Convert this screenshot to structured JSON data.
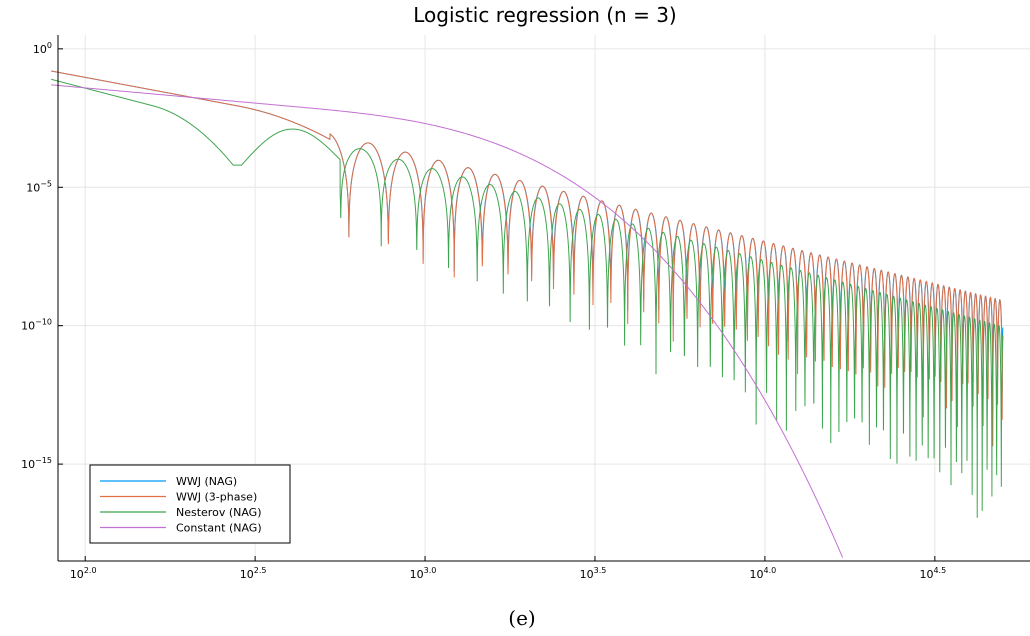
{
  "chart_data": {
    "type": "line",
    "title": "Logistic regression (n = 3)",
    "caption": "(e)",
    "xscale": "log10",
    "yscale": "log10",
    "xlim_log10": [
      1.92,
      4.78
    ],
    "ylim_log10": [
      -18.5,
      0.5
    ],
    "x_ticks": [
      {
        "base": "10",
        "exp": "2.0",
        "log10": 2.0
      },
      {
        "base": "10",
        "exp": "2.5",
        "log10": 2.5
      },
      {
        "base": "10",
        "exp": "3.0",
        "log10": 3.0
      },
      {
        "base": "10",
        "exp": "3.5",
        "log10": 3.5
      },
      {
        "base": "10",
        "exp": "4.0",
        "log10": 4.0
      },
      {
        "base": "10",
        "exp": "4.5",
        "log10": 4.5
      }
    ],
    "y_ticks": [
      {
        "base": "10",
        "exp": "0",
        "log10": 0
      },
      {
        "base": "10",
        "exp": "−5",
        "log10": -5
      },
      {
        "base": "10",
        "exp": "−10",
        "log10": -10
      },
      {
        "base": "10",
        "exp": "−15",
        "log10": -15
      }
    ],
    "grid": true,
    "legend_position": "bottom-left",
    "series": [
      {
        "name": "WWJ (NAG)",
        "color": "#009af9"
      },
      {
        "name": "WWJ (3-phase)",
        "color": "#e26f46"
      },
      {
        "name": "Nesterov (NAG)",
        "color": "#3ea44e"
      },
      {
        "name": "Constant (NAG)",
        "color": "#c271d2"
      }
    ]
  }
}
